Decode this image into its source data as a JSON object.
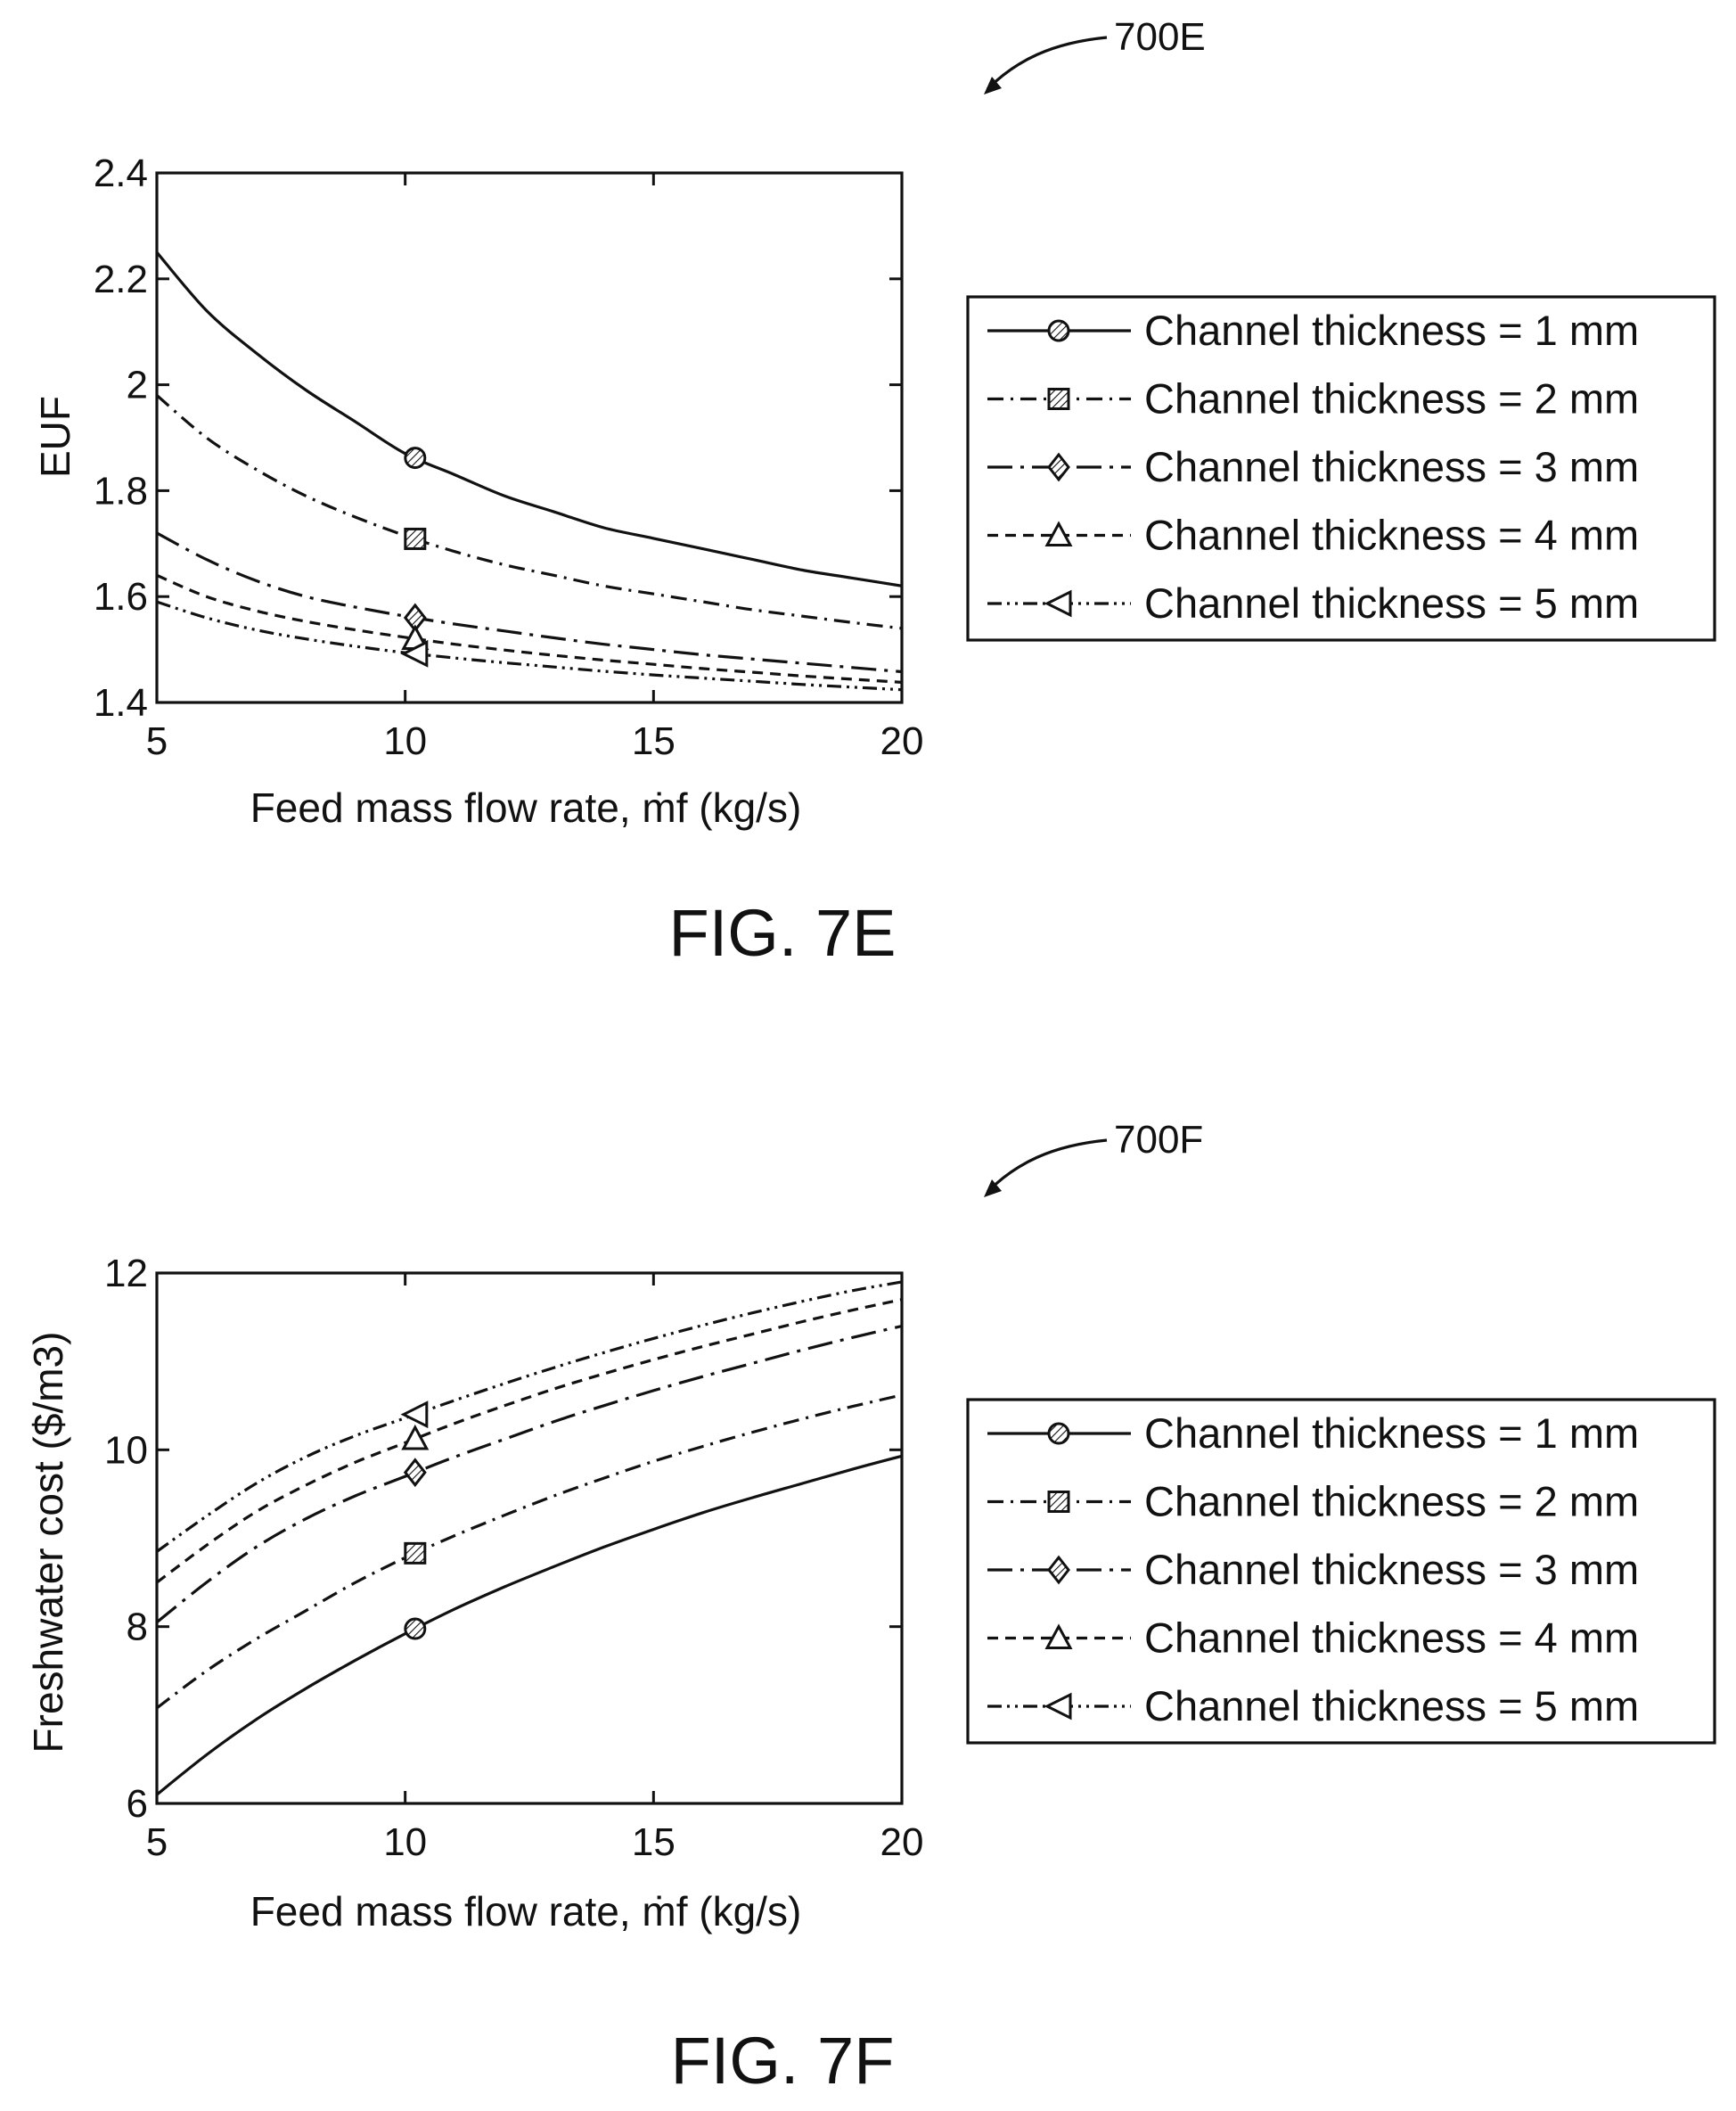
{
  "figures": [
    {
      "ref_label": "700E",
      "fig_label": "FIG. 7E",
      "ylabel": "EUF",
      "xlabel": "Feed mass flow rate, ṁf (kg/s)",
      "legend": [
        "Channel thickness = 1 mm",
        "Channel thickness = 2 mm",
        "Channel thickness = 3 mm",
        "Channel thickness = 4 mm",
        "Channel thickness = 5 mm"
      ]
    },
    {
      "ref_label": "700F",
      "fig_label": "FIG. 7F",
      "ylabel": "Freshwater cost ($/m3)",
      "xlabel": "Feed mass flow rate, ṁf (kg/s)",
      "legend": [
        "Channel thickness = 1 mm",
        "Channel thickness = 2 mm",
        "Channel thickness = 3 mm",
        "Channel thickness = 4 mm",
        "Channel thickness = 5 mm"
      ]
    }
  ],
  "chart_data": [
    {
      "type": "line",
      "title": "FIG. 7E",
      "xlabel": "Feed mass flow rate, ṁf (kg/s)",
      "ylabel": "EUF",
      "xlim": [
        5,
        20
      ],
      "ylim": [
        1.4,
        2.4
      ],
      "xticks": [
        5,
        10,
        15,
        20
      ],
      "yticks": [
        1.4,
        1.6,
        1.8,
        2.0,
        2.2,
        2.4
      ],
      "ytick_labels": [
        "1.4",
        "1.6",
        "1.8",
        "2",
        "2.2",
        "2.4"
      ],
      "grid": false,
      "legend_position": "right",
      "series": [
        {
          "name": "Channel thickness = 1 mm",
          "line_style": "solid",
          "marker": "circle-hatched",
          "marker_x": 10.2,
          "x": [
            5,
            6,
            7,
            8,
            9,
            10,
            11,
            12,
            13,
            14,
            15,
            16,
            17,
            18,
            19,
            20
          ],
          "y": [
            2.25,
            2.14,
            2.06,
            1.99,
            1.93,
            1.87,
            1.83,
            1.79,
            1.76,
            1.73,
            1.71,
            1.69,
            1.67,
            1.65,
            1.635,
            1.62
          ]
        },
        {
          "name": "Channel thickness = 2 mm",
          "line_style": "dashdot",
          "marker": "square-hatched",
          "marker_x": 10.2,
          "x": [
            5,
            6,
            7,
            8,
            9,
            10,
            11,
            12,
            13,
            14,
            15,
            16,
            17,
            18,
            19,
            20
          ],
          "y": [
            1.98,
            1.9,
            1.84,
            1.79,
            1.75,
            1.715,
            1.685,
            1.66,
            1.64,
            1.62,
            1.605,
            1.59,
            1.575,
            1.563,
            1.551,
            1.54
          ]
        },
        {
          "name": "Channel thickness = 3 mm",
          "line_style": "longdashdot",
          "marker": "diamond-hatched",
          "marker_x": 10.2,
          "x": [
            5,
            6,
            7,
            8,
            9,
            10,
            11,
            12,
            13,
            14,
            15,
            16,
            17,
            18,
            19,
            20
          ],
          "y": [
            1.72,
            1.67,
            1.63,
            1.6,
            1.58,
            1.563,
            1.548,
            1.535,
            1.522,
            1.51,
            1.5,
            1.49,
            1.482,
            1.474,
            1.466,
            1.458
          ]
        },
        {
          "name": "Channel thickness = 4 mm",
          "line_style": "dashed",
          "marker": "triangle-up",
          "marker_x": 10.2,
          "x": [
            5,
            6,
            7,
            8,
            9,
            10,
            11,
            12,
            13,
            14,
            15,
            16,
            17,
            18,
            19,
            20
          ],
          "y": [
            1.64,
            1.6,
            1.573,
            1.553,
            1.537,
            1.523,
            1.51,
            1.499,
            1.489,
            1.48,
            1.472,
            1.464,
            1.457,
            1.45,
            1.444,
            1.438
          ]
        },
        {
          "name": "Channel thickness = 5 mm",
          "line_style": "dashdotdot",
          "marker": "triangle-left",
          "marker_x": 10.2,
          "x": [
            5,
            6,
            7,
            8,
            9,
            10,
            11,
            12,
            13,
            14,
            15,
            16,
            17,
            18,
            19,
            20
          ],
          "y": [
            1.59,
            1.56,
            1.537,
            1.52,
            1.506,
            1.494,
            1.484,
            1.475,
            1.467,
            1.459,
            1.452,
            1.446,
            1.44,
            1.434,
            1.429,
            1.424
          ]
        }
      ]
    },
    {
      "type": "line",
      "title": "FIG. 7F",
      "xlabel": "Feed mass flow rate, ṁf (kg/s)",
      "ylabel": "Freshwater cost ($/m3)",
      "xlim": [
        5,
        20
      ],
      "ylim": [
        6,
        12
      ],
      "xticks": [
        5,
        10,
        15,
        20
      ],
      "yticks": [
        6,
        8,
        10,
        12
      ],
      "ytick_labels": [
        "6",
        "8",
        "10",
        "12"
      ],
      "grid": false,
      "legend_position": "right",
      "series": [
        {
          "name": "Channel thickness = 1 mm",
          "line_style": "solid",
          "marker": "circle-hatched",
          "marker_x": 10.2,
          "x": [
            5,
            6,
            7,
            8,
            9,
            10,
            11,
            12,
            13,
            14,
            15,
            16,
            17,
            18,
            19,
            20
          ],
          "y": [
            6.1,
            6.55,
            6.95,
            7.3,
            7.62,
            7.92,
            8.2,
            8.45,
            8.68,
            8.9,
            9.1,
            9.29,
            9.46,
            9.62,
            9.78,
            9.93
          ]
        },
        {
          "name": "Channel thickness = 2 mm",
          "line_style": "dashdot",
          "marker": "square-hatched",
          "marker_x": 10.2,
          "x": [
            5,
            6,
            7,
            8,
            9,
            10,
            11,
            12,
            13,
            14,
            15,
            16,
            17,
            18,
            19,
            20
          ],
          "y": [
            7.08,
            7.5,
            7.86,
            8.18,
            8.5,
            8.78,
            9.03,
            9.26,
            9.48,
            9.68,
            9.87,
            10.04,
            10.2,
            10.35,
            10.49,
            10.62
          ]
        },
        {
          "name": "Channel thickness = 3 mm",
          "line_style": "longdashdot",
          "marker": "diamond-hatched",
          "marker_x": 10.2,
          "x": [
            5,
            6,
            7,
            8,
            9,
            10,
            11,
            12,
            13,
            14,
            15,
            16,
            17,
            18,
            19,
            20
          ],
          "y": [
            8.05,
            8.5,
            8.9,
            9.22,
            9.48,
            9.7,
            9.92,
            10.12,
            10.32,
            10.5,
            10.67,
            10.83,
            10.98,
            11.13,
            11.27,
            11.4
          ]
        },
        {
          "name": "Channel thickness = 4 mm",
          "line_style": "dashed",
          "marker": "triangle-up",
          "marker_x": 10.2,
          "x": [
            5,
            6,
            7,
            8,
            9,
            10,
            11,
            12,
            13,
            14,
            15,
            16,
            17,
            18,
            19,
            20
          ],
          "y": [
            8.5,
            8.92,
            9.3,
            9.6,
            9.86,
            10.08,
            10.3,
            10.5,
            10.69,
            10.86,
            11.02,
            11.17,
            11.31,
            11.45,
            11.58,
            11.7
          ]
        },
        {
          "name": "Channel thickness = 5 mm",
          "line_style": "dashdotdot",
          "marker": "triangle-left",
          "marker_x": 10.2,
          "x": [
            5,
            6,
            7,
            8,
            9,
            10,
            11,
            12,
            13,
            14,
            15,
            16,
            17,
            18,
            19,
            20
          ],
          "y": [
            8.85,
            9.25,
            9.62,
            9.92,
            10.16,
            10.36,
            10.56,
            10.75,
            10.93,
            11.1,
            11.26,
            11.41,
            11.55,
            11.68,
            11.8,
            11.9
          ]
        }
      ]
    }
  ]
}
